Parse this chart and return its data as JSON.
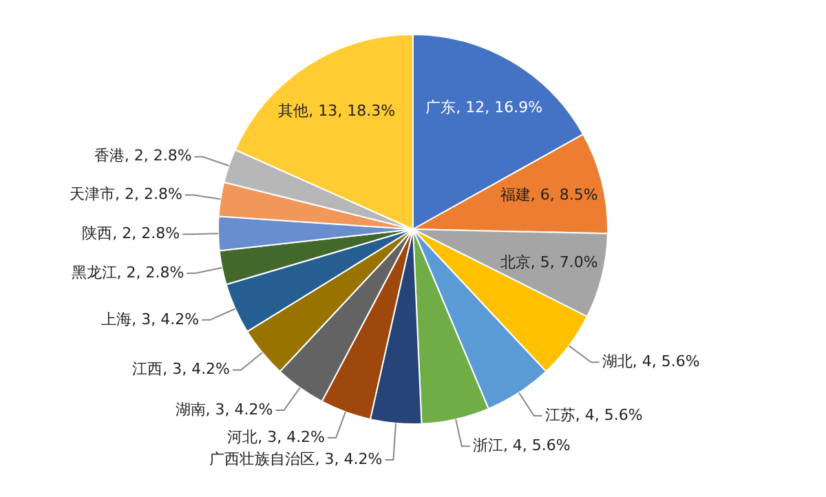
{
  "chart_data": {
    "type": "pie",
    "categories": [
      "广东",
      "福建",
      "北京",
      "湖北",
      "江苏",
      "浙江",
      "广西壮族自治区",
      "河北",
      "湖南",
      "江西",
      "上海",
      "黑龙江",
      "陕西",
      "天津市",
      "香港",
      "其他"
    ],
    "values": [
      12,
      6,
      5,
      4,
      4,
      4,
      3,
      3,
      3,
      3,
      3,
      2,
      2,
      2,
      2,
      13
    ],
    "colors": [
      "#4472c4",
      "#ed7d31",
      "#a5a5a5",
      "#ffc000",
      "#5b9bd5",
      "#70ad47",
      "#264478",
      "#9e480e",
      "#636363",
      "#997300",
      "#255e91",
      "#43682b",
      "#698ed0",
      "#f1975a",
      "#b7b7b7",
      "#ffcd33"
    ],
    "value_labels": [
      "12, 16.9%",
      "6, 8.5%",
      "5, 7.0%",
      "4, 5.6%",
      "4, 5.6%",
      "4, 5.6%",
      "3, 4.2%",
      "3, 4.2%",
      "3, 4.2%",
      "3, 4.2%",
      "3, 4.2%",
      "2, 2.8%",
      "2, 2.8%",
      "2, 2.8%",
      "2, 2.8%",
      "13, 18.3%"
    ]
  }
}
